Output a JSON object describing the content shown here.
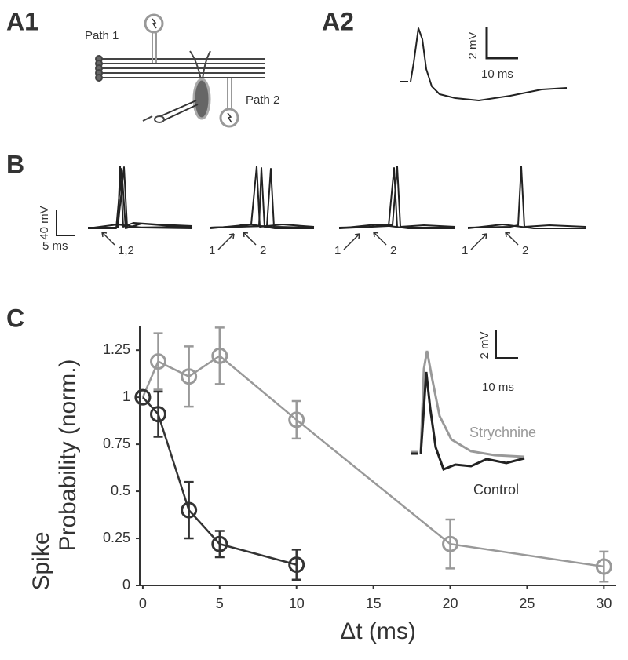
{
  "panels": {
    "a1": {
      "label": "A1",
      "path1": "Path 1",
      "path2": "Path 2"
    },
    "a2": {
      "label": "A2",
      "scale_y": "2 mV",
      "scale_x": "10 ms"
    },
    "b": {
      "label": "B",
      "scale_y": "40 mV",
      "scale_x": "5 ms",
      "arrows": [
        "1,2",
        "1",
        "2",
        "1",
        "2",
        "1",
        "2"
      ]
    },
    "c": {
      "label": "C",
      "inset_scale_y": "2 mV",
      "inset_scale_x": "10 ms"
    }
  },
  "chart_data": {
    "type": "line",
    "y_label": [
      "Spike",
      "Probability (norm.)"
    ],
    "x_label": "Δt (ms)",
    "xlim": [
      -0.2,
      30.8
    ],
    "xticks": [
      0,
      5,
      10,
      15,
      20,
      25,
      30
    ],
    "ylim": [
      0,
      1.38
    ],
    "yticks": [
      0,
      0.25,
      0.5,
      0.75,
      1,
      1.25
    ],
    "series": [
      {
        "name": "Strychnine",
        "color": "#999999",
        "x": [
          0,
          1,
          3,
          5,
          10,
          20,
          30
        ],
        "values": [
          1,
          1.19,
          1.11,
          1.22,
          0.88,
          0.22,
          0.1
        ],
        "errors": [
          0,
          0.15,
          0.16,
          0.15,
          0.1,
          0.13,
          0.08
        ]
      },
      {
        "name": "Control",
        "color": "#333333",
        "x": [
          0,
          1,
          3,
          5,
          10
        ],
        "values": [
          1,
          0.91,
          0.4,
          0.22,
          0.11
        ],
        "errors": [
          0,
          0.12,
          0.15,
          0.07,
          0.08
        ]
      }
    ]
  }
}
